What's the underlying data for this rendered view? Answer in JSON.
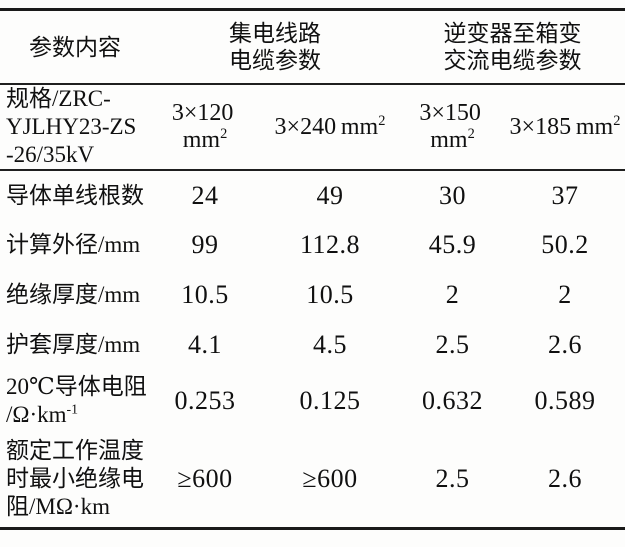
{
  "colors": {
    "background": "#fdfdfc",
    "text": "#101010",
    "rule": "#1a1a1a"
  },
  "table": {
    "header": {
      "param_label": "参数内容",
      "group_collector_lines": [
        "集电线路",
        "电缆参数"
      ],
      "group_inverter_lines": [
        "逆变器至箱变",
        "交流电缆参数"
      ]
    },
    "rows": [
      {
        "label_lines": [
          "规格/ZRC-",
          "YJLHY23-ZS",
          "-26/35kV"
        ],
        "values_base": [
          "3×120 mm",
          "3×240 mm",
          "3×150 mm",
          "3×185 mm"
        ],
        "values_sup": [
          "2",
          "2",
          "2",
          "2"
        ]
      },
      {
        "label_lines": [
          "导体单线根数"
        ],
        "values": [
          "24",
          "49",
          "30",
          "37"
        ]
      },
      {
        "label_lines": [
          "计算外径/mm"
        ],
        "values": [
          "99",
          "112.8",
          "45.9",
          "50.2"
        ]
      },
      {
        "label_lines": [
          "绝缘厚度/mm"
        ],
        "values": [
          "10.5",
          "10.5",
          "2",
          "2"
        ]
      },
      {
        "label_lines": [
          "护套厚度/mm"
        ],
        "values": [
          "4.1",
          "4.5",
          "2.5",
          "2.6"
        ]
      },
      {
        "label_lines": [
          "20℃导体电阻",
          "/Ω·km"
        ],
        "label_sup": "-1",
        "values": [
          "0.253",
          "0.125",
          "0.632",
          "0.589"
        ]
      },
      {
        "label_lines": [
          "额定工作温度",
          "时最小绝缘电",
          "阻/MΩ·km"
        ],
        "values": [
          "≥600",
          "≥600",
          "2.5",
          "2.6"
        ]
      }
    ]
  }
}
